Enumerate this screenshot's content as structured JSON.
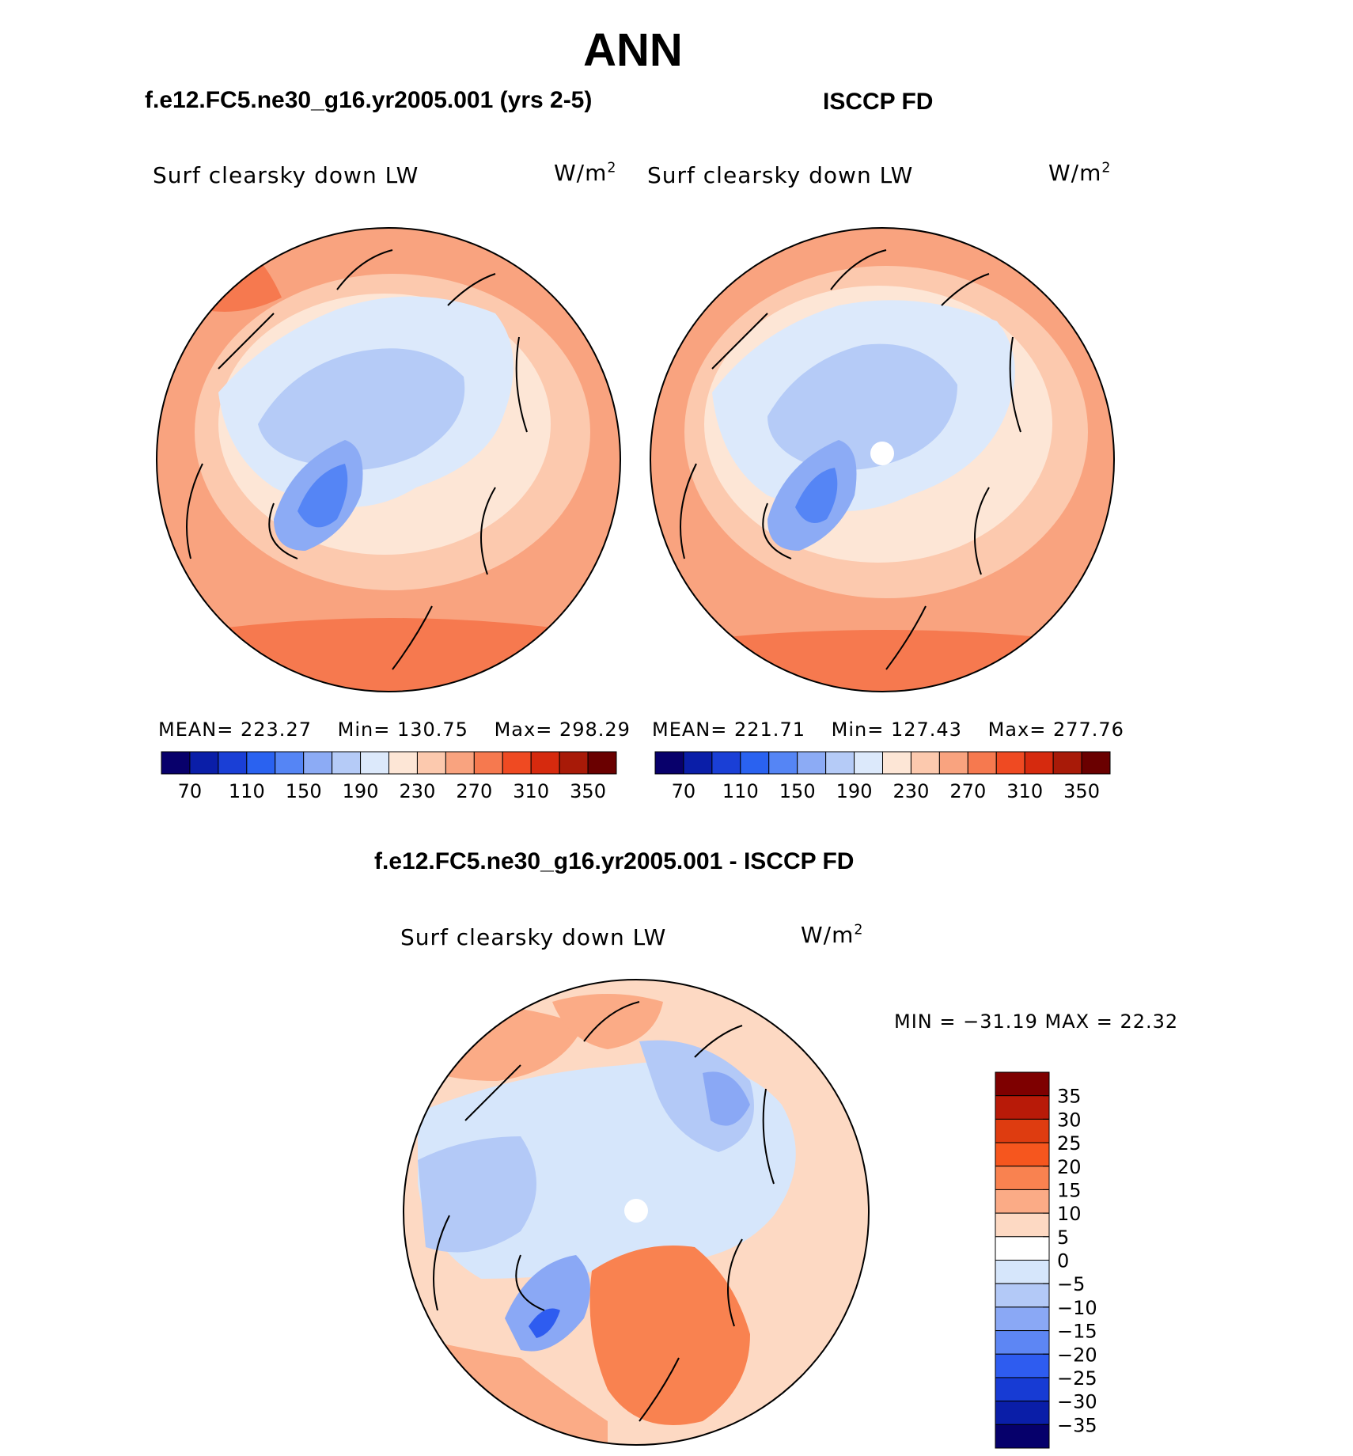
{
  "page_title": "ANN",
  "panels": [
    {
      "title": "f.e12.FC5.ne30_g16.yr2005.001 (yrs 2-5)",
      "variable": "Surf clearsky down LW",
      "units_base": "W/m",
      "units_exp": "2",
      "stats": {
        "mean_label": "MEAN=",
        "mean": "223.27",
        "min_label": "Min=",
        "min": "130.75",
        "max_label": "Max=",
        "max": "298.29"
      }
    },
    {
      "title": "ISCCP FD",
      "variable": "Surf clearsky down LW",
      "units_base": "W/m",
      "units_exp": "2",
      "stats": {
        "mean_label": "MEAN=",
        "mean": "221.71",
        "min_label": "Min=",
        "min": "127.43",
        "max_label": "Max=",
        "max": "277.76"
      }
    },
    {
      "title": "f.e12.FC5.ne30_g16.yr2005.001 - ISCCP FD",
      "variable": "Surf clearsky down LW",
      "units_base": "W/m",
      "units_exp": "2",
      "stats_text": "MIN = −31.19 MAX =  22.32"
    }
  ],
  "chart_data": [
    {
      "type": "heatmap",
      "projection": "north polar stereographic",
      "title": "f.e12.FC5.ne30_g16.yr2005.001 (yrs 2-5)",
      "variable": "Surf clearsky down LW",
      "units": "W/m2",
      "mean": 223.27,
      "min": 130.75,
      "max": 298.29,
      "colorbar_levels": [
        70,
        90,
        110,
        130,
        150,
        170,
        190,
        210,
        230,
        250,
        270,
        290,
        310,
        330,
        350
      ],
      "colorbar_tick_labels": [
        "70",
        "110",
        "150",
        "190",
        "230",
        "270",
        "310",
        "350"
      ]
    },
    {
      "type": "heatmap",
      "projection": "north polar stereographic",
      "title": "ISCCP FD",
      "variable": "Surf clearsky down LW",
      "units": "W/m2",
      "mean": 221.71,
      "min": 127.43,
      "max": 277.76,
      "colorbar_levels": [
        70,
        90,
        110,
        130,
        150,
        170,
        190,
        210,
        230,
        250,
        270,
        290,
        310,
        330,
        350
      ],
      "colorbar_tick_labels": [
        "70",
        "110",
        "150",
        "190",
        "230",
        "270",
        "310",
        "350"
      ]
    },
    {
      "type": "heatmap",
      "projection": "north polar stereographic",
      "title": "f.e12.FC5.ne30_g16.yr2005.001 - ISCCP FD",
      "variable": "Surf clearsky down LW",
      "units": "W/m2",
      "min": -31.19,
      "max": 22.32,
      "colorbar_levels": [
        35,
        30,
        25,
        20,
        15,
        10,
        5,
        0,
        -5,
        -10,
        -15,
        -20,
        -25,
        -30,
        -35
      ],
      "colorbar_tick_labels": [
        "35",
        "30",
        "25",
        "20",
        "15",
        "10",
        "5",
        "0",
        "−5",
        "−10",
        "−15",
        "−20",
        "−25",
        "−30",
        "−35"
      ]
    }
  ],
  "colors": {
    "abs_scale": [
      "#08006b",
      "#0a1ea8",
      "#1a3fd6",
      "#2a62f0",
      "#5585f5",
      "#8cabf5",
      "#b5cbf7",
      "#dce9fb",
      "#fde6d6",
      "#fcc9ae",
      "#f9a37f",
      "#f6794f",
      "#ef4a22",
      "#d62a0e",
      "#a81a08",
      "#6a0000"
    ],
    "diff_scale": [
      "#7e0000",
      "#b81a08",
      "#de3c10",
      "#f6561e",
      "#f98250",
      "#fbab86",
      "#fdd9c3",
      "#ffffff",
      "#d6e6fb",
      "#b3c9f7",
      "#8aa8f5",
      "#5d86f4",
      "#2e5cf0",
      "#173bd4",
      "#0a1ea8",
      "#06006b"
    ]
  }
}
